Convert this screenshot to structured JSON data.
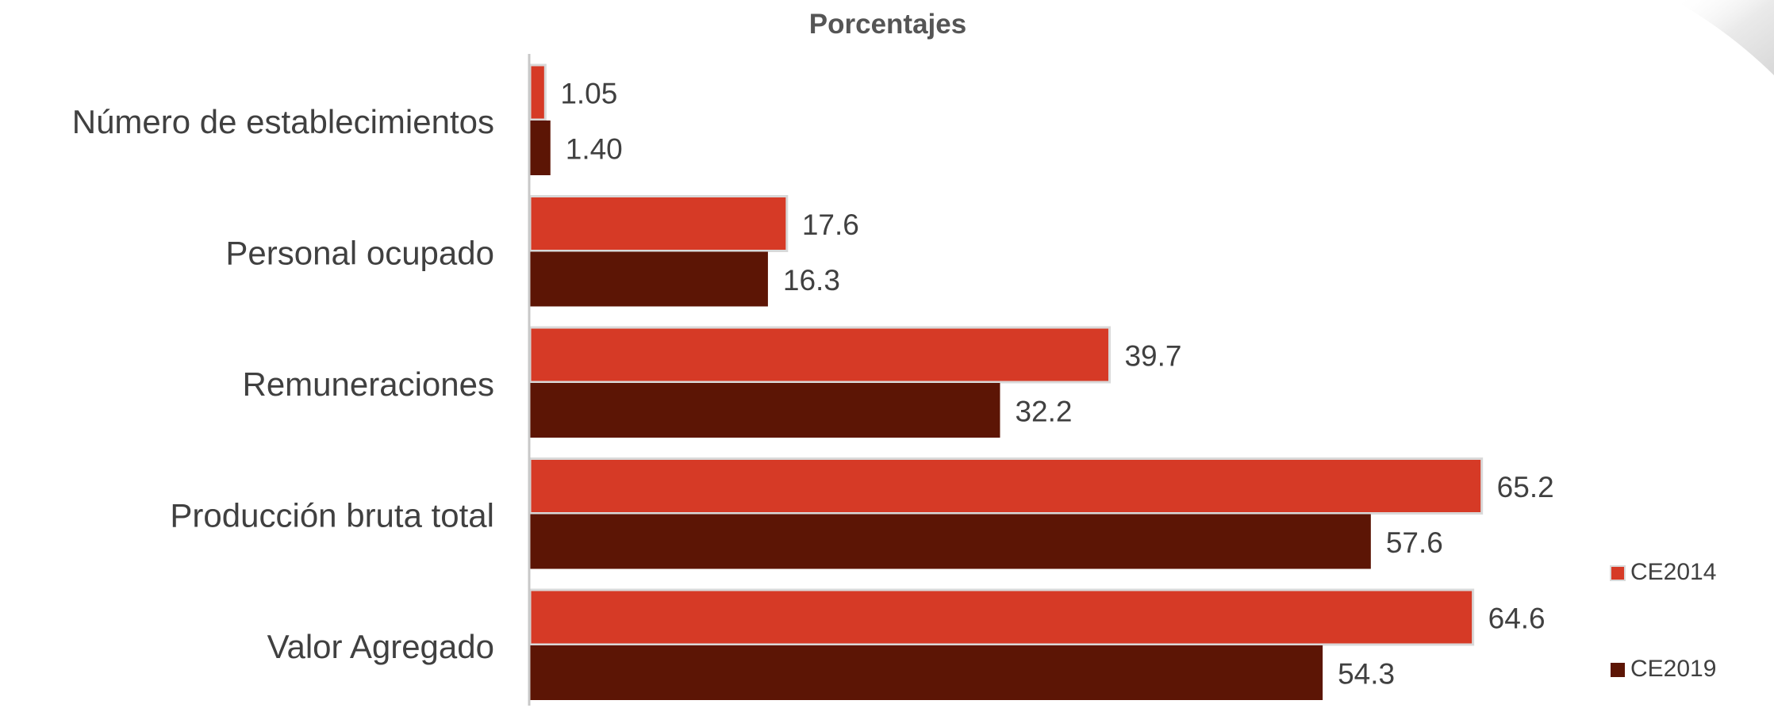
{
  "chart_data": {
    "type": "bar",
    "orientation": "horizontal",
    "title": "Porcentajes",
    "categories": [
      "Número de establecimientos",
      "Personal ocupado",
      "Remuneraciones",
      "Producción bruta total",
      "Valor Agregado"
    ],
    "series": [
      {
        "name": "CE2014",
        "color": "#d63a26",
        "values": [
          1.05,
          17.6,
          39.7,
          65.2,
          64.6
        ],
        "labels": [
          "1.05",
          "17.6",
          "39.7",
          "65.2",
          "64.6"
        ]
      },
      {
        "name": "CE2019",
        "color": "#5c1505",
        "values": [
          1.4,
          16.3,
          32.2,
          57.6,
          54.3
        ],
        "labels": [
          "1.40",
          "16.3",
          "32.2",
          "57.6",
          "54.3"
        ]
      }
    ],
    "xlim": [
      0,
      85
    ],
    "grid": false,
    "legend_position": "right-bottom"
  }
}
